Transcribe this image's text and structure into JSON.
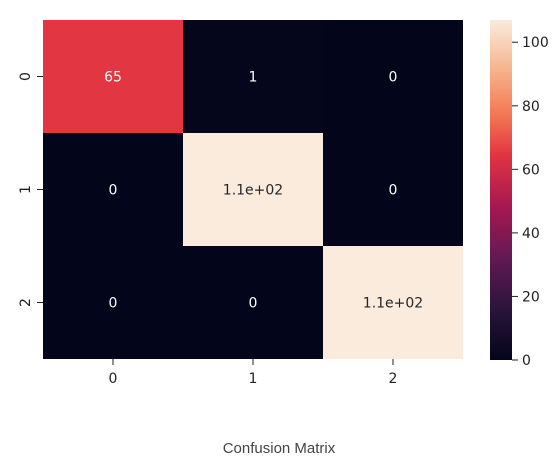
{
  "chart_data": {
    "type": "heatmap",
    "x_categories": [
      "0",
      "1",
      "2"
    ],
    "y_categories": [
      "0",
      "1",
      "2"
    ],
    "values": [
      [
        65,
        1,
        0
      ],
      [
        0,
        110,
        0
      ],
      [
        0,
        0,
        110
      ]
    ],
    "cell_labels": [
      [
        "65",
        "1",
        "0"
      ],
      [
        "0",
        "1.1e+02",
        "0"
      ],
      [
        "0",
        "0",
        "1.1e+02"
      ]
    ],
    "colorbar": {
      "min": 0,
      "max": 107,
      "ticks": [
        0,
        20,
        40,
        60,
        80,
        100
      ]
    },
    "colormap": "rocket",
    "colors": {
      "low": "#03051a",
      "mid": "#e13342",
      "high": "#faebdd"
    }
  },
  "caption": "Confusion Matrix"
}
